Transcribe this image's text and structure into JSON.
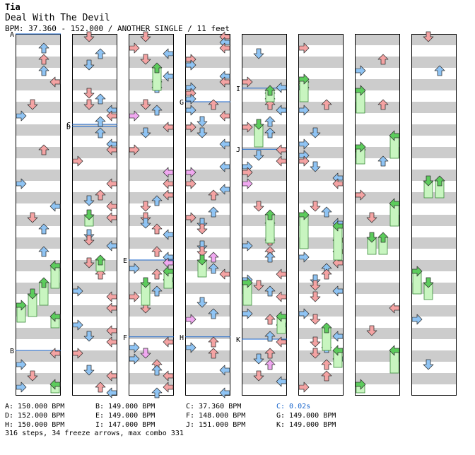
{
  "header": {
    "artist": "Tia",
    "song_title": "Deal With The Devil",
    "meta_line": "BPM: 37.360 - 152.000 / ANOTHER SINGLE / 11 feet"
  },
  "chart_data": {
    "type": "step-chart",
    "columns": 8,
    "measures_per_column": 8,
    "colors": {
      "quarter": "#f4a3a3",
      "eighth": "#8fc4f4",
      "sixteenth": "#f0a8f0",
      "green": "#5ccc5c",
      "freeze": "#c8f5c0",
      "band": "#cccccc",
      "marker_line": "#1a66cc"
    },
    "markers": [
      {
        "label": "A",
        "measure": 0,
        "beat": 0
      },
      {
        "label": "B",
        "measure": 7,
        "beat": 0
      },
      {
        "label": "C",
        "measure": 10,
        "beat": 0
      },
      {
        "label": "D",
        "measure": 10,
        "beat": 0.2
      },
      {
        "label": "E",
        "measure": 21,
        "beat": 0
      },
      {
        "label": "F",
        "measure": 22,
        "beat": 2.8
      },
      {
        "label": "G",
        "measure": 25,
        "beat": 2
      },
      {
        "label": "H",
        "measure": 30,
        "beat": 2.8
      },
      {
        "label": "I",
        "measure": 33,
        "beat": 0.8
      },
      {
        "label": "J",
        "measure": 34,
        "beat": 2.2
      },
      {
        "label": "K",
        "measure": 38,
        "beat": 3
      }
    ]
  },
  "legend": [
    [
      {
        "text": "A: 150.000 BPM",
        "stop": false
      },
      {
        "text": "B: 149.000 BPM",
        "stop": false
      },
      {
        "text": "C: 37.360 BPM",
        "stop": false
      },
      {
        "text": "C: 0.02s",
        "stop": true
      }
    ],
    [
      {
        "text": "D: 152.000 BPM",
        "stop": false
      },
      {
        "text": "E: 149.000 BPM",
        "stop": false
      },
      {
        "text": "F: 148.000 BPM",
        "stop": false
      },
      {
        "text": "G: 149.000 BPM",
        "stop": false
      }
    ],
    [
      {
        "text": "H: 150.000 BPM",
        "stop": false
      },
      {
        "text": "I: 147.000 BPM",
        "stop": false
      },
      {
        "text": "J: 151.000 BPM",
        "stop": false
      },
      {
        "text": "K: 149.000 BPM",
        "stop": false
      }
    ]
  ],
  "footer": {
    "summary": "316 steps, 34 freeze arrows, max combo 331"
  }
}
